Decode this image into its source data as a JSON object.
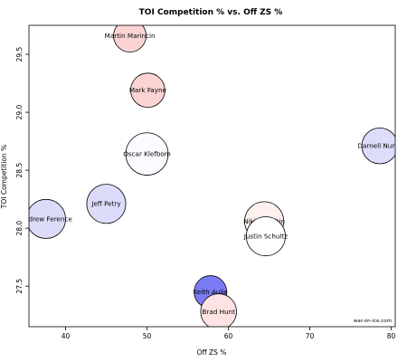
{
  "chart_data": {
    "type": "scatter",
    "title": "TOI Competition % vs. Off ZS %",
    "xlabel": "Off ZS %",
    "ylabel": "TOI Competition %",
    "xlim": [
      35.5,
      80.5
    ],
    "ylim": [
      27.15,
      29.75
    ],
    "xticks": [
      40,
      50,
      60,
      70,
      80
    ],
    "yticks": [
      27.5,
      28.0,
      28.5,
      29.0,
      29.5
    ],
    "xtick_labels": [
      "40",
      "50",
      "60",
      "70",
      "80"
    ],
    "ytick_labels": [
      "27.5",
      "28.0",
      "28.5",
      "29.0",
      "29.5"
    ],
    "grid": false,
    "watermark": "war-on-ice.com",
    "points": [
      {
        "label": "Martin Marincin",
        "x": 47.9,
        "y": 29.66,
        "size": 1.0,
        "color": "#fbd3d3"
      },
      {
        "label": "Mark Fayne",
        "x": 50.1,
        "y": 29.19,
        "size": 1.05,
        "color": "#fbd3d3"
      },
      {
        "label": "Oscar Klefbom",
        "x": 50.0,
        "y": 28.64,
        "size": 1.3,
        "color": "#fafaff"
      },
      {
        "label": "Darnell Nurse",
        "x": 78.6,
        "y": 28.71,
        "size": 1.1,
        "color": "#dcdcfb"
      },
      {
        "label": "Andrew Ference",
        "x": 37.6,
        "y": 28.08,
        "size": 1.2,
        "color": "#dcdcfa"
      },
      {
        "label": "Jeff Petry",
        "x": 45.0,
        "y": 28.21,
        "size": 1.2,
        "color": "#dcdcfa"
      },
      {
        "label": "Nikita Nikitin",
        "x": 64.4,
        "y": 28.06,
        "size": 1.2,
        "color": "#fef0ef"
      },
      {
        "label": "Justin Schultz",
        "x": 64.6,
        "y": 27.93,
        "size": 1.2,
        "color": "#ffffff"
      },
      {
        "label": "Keith Aulie",
        "x": 57.8,
        "y": 27.45,
        "size": 1.0,
        "color": "#7a7af5"
      },
      {
        "label": "Brad Hunt",
        "x": 58.8,
        "y": 27.28,
        "size": 1.1,
        "color": "#fde3e3"
      }
    ]
  }
}
